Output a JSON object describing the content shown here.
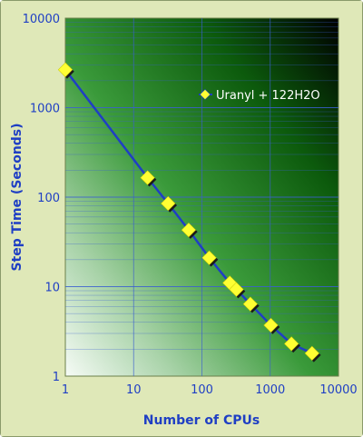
{
  "chart_data": {
    "type": "line",
    "xscale": "log",
    "yscale": "log",
    "xlabel": "Number of CPUs",
    "ylabel": "Step Time (Seconds)",
    "xlim": [
      1,
      10000
    ],
    "ylim": [
      1,
      10000
    ],
    "x_ticks": [
      "1",
      "10",
      "100",
      "1000",
      "10000"
    ],
    "y_ticks": [
      "1",
      "10",
      "100",
      "1000",
      "10000"
    ],
    "grid": true,
    "legend": "upper-right",
    "series": [
      {
        "name": "Uranyl + 122H2O",
        "color": "#1f3fc4",
        "marker_color": "#ffff33",
        "x": [
          1,
          16,
          32,
          64,
          128,
          256,
          320,
          512,
          1024,
          2048,
          4096
        ],
        "y": [
          2650,
          165,
          85,
          43,
          21,
          11,
          9.3,
          6.4,
          3.7,
          2.3,
          1.8
        ]
      }
    ]
  },
  "colors": {
    "page_background": "#dfe8b8",
    "plot_gradient_dark": "#0b3d0b",
    "plot_gradient_light": "#eef4ee",
    "text": "#1f3fc4"
  }
}
